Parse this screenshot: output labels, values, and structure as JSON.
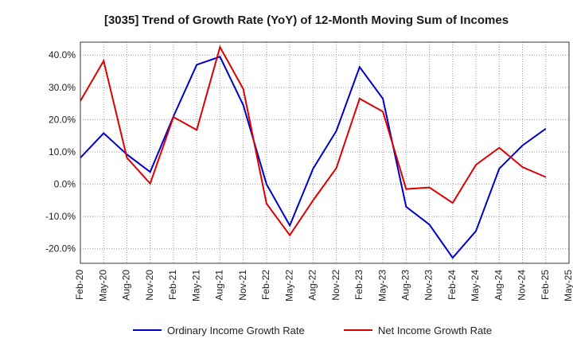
{
  "chart_data": {
    "type": "line",
    "title": "[3035]  Trend of Growth Rate (YoY) of 12-Month Moving Sum of Incomes",
    "xlabel": "",
    "ylabel": "",
    "categories": [
      "Feb-20",
      "May-20",
      "Aug-20",
      "Nov-20",
      "Feb-21",
      "May-21",
      "Aug-21",
      "Nov-21",
      "Feb-22",
      "May-22",
      "Aug-22",
      "Nov-22",
      "Feb-23",
      "May-23",
      "Aug-23",
      "Nov-23",
      "Feb-24",
      "May-24",
      "Aug-24",
      "Nov-24",
      "Feb-25",
      "May-25"
    ],
    "yticks": [
      "40.0%",
      "30.0%",
      "20.0%",
      "10.0%",
      "0.0%",
      "-10.0%",
      "-20.0%"
    ],
    "ytick_values": [
      40,
      30,
      20,
      10,
      0,
      -10,
      -20
    ],
    "ylim": [
      -24.5,
      44
    ],
    "grid": true,
    "legend_position": "bottom",
    "series": [
      {
        "name": "Ordinary Income Growth Rate",
        "color": "#0000cc",
        "values": [
          8.2,
          15.8,
          9.2,
          3.8,
          21.0,
          37.0,
          39.5,
          24.5,
          0.0,
          -12.8,
          4.8,
          16.5,
          36.3,
          26.5,
          -7.0,
          -12.5,
          -22.8,
          -14.5,
          4.8,
          12.0,
          17.2,
          null
        ]
      },
      {
        "name": "Net Income Growth Rate",
        "color": "#dd0000",
        "values": [
          25.8,
          38.2,
          8.2,
          0.2,
          20.8,
          16.8,
          42.5,
          29.5,
          -6.0,
          -15.8,
          -5.0,
          5.0,
          26.5,
          22.5,
          -1.5,
          -1.0,
          -5.8,
          6.0,
          11.3,
          5.3,
          2.2,
          null
        ]
      }
    ]
  }
}
